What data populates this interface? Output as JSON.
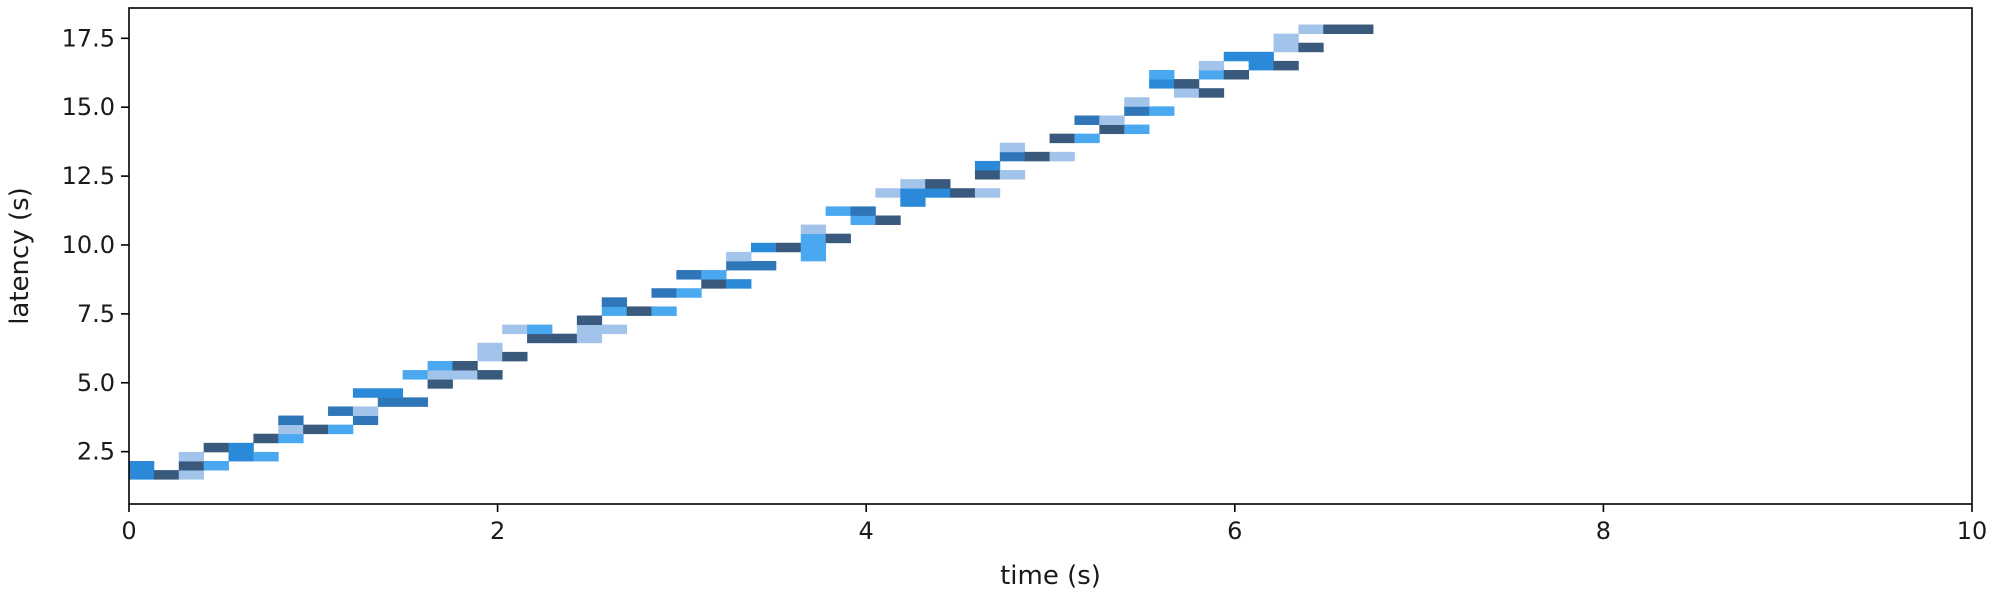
{
  "chart_data": {
    "type": "heatmap",
    "xlabel": "time (s)",
    "ylabel": "latency (s)",
    "xlim": [
      0,
      10
    ],
    "ylim": [
      0.6,
      18.6
    ],
    "x_ticks": [
      0,
      2,
      4,
      6,
      8,
      10
    ],
    "y_ticks": [
      2.5,
      5.0,
      7.5,
      10.0,
      12.5,
      15.0,
      17.5
    ],
    "x_tick_labels": [
      "0",
      "2",
      "4",
      "6",
      "8",
      "10"
    ],
    "y_tick_labels": [
      "2.5",
      "5.0",
      "7.5",
      "10.0",
      "12.5",
      "15.0",
      "17.5"
    ],
    "grid": false,
    "bin_width": 0.135,
    "bin_height": 0.33,
    "palette": [
      "#a3c4ea",
      "#4aa8f0",
      "#2a8ad9",
      "#2e76b8",
      "#3a5a7d"
    ],
    "cells": [
      [
        0.0,
        1.5,
        2
      ],
      [
        0.0,
        1.83,
        2
      ],
      [
        0.135,
        1.5,
        4
      ],
      [
        0.27,
        1.5,
        0
      ],
      [
        0.27,
        1.83,
        4
      ],
      [
        0.27,
        2.16,
        0
      ],
      [
        0.405,
        1.83,
        1
      ],
      [
        0.405,
        2.49,
        4
      ],
      [
        0.54,
        2.16,
        2
      ],
      [
        0.54,
        2.49,
        2
      ],
      [
        0.675,
        2.16,
        1
      ],
      [
        0.675,
        2.82,
        4
      ],
      [
        0.81,
        2.82,
        1
      ],
      [
        0.81,
        3.15,
        0
      ],
      [
        0.81,
        3.48,
        3
      ],
      [
        0.945,
        3.15,
        4
      ],
      [
        1.08,
        3.15,
        1
      ],
      [
        1.08,
        3.81,
        3
      ],
      [
        1.215,
        3.48,
        3
      ],
      [
        1.215,
        3.81,
        0
      ],
      [
        1.215,
        4.47,
        2
      ],
      [
        1.35,
        4.14,
        3
      ],
      [
        1.35,
        4.47,
        2
      ],
      [
        1.485,
        4.14,
        3
      ],
      [
        1.485,
        5.13,
        1
      ],
      [
        1.62,
        4.8,
        4
      ],
      [
        1.62,
        5.13,
        0
      ],
      [
        1.62,
        5.46,
        1
      ],
      [
        1.755,
        5.13,
        0
      ],
      [
        1.755,
        5.46,
        4
      ],
      [
        1.89,
        5.13,
        4
      ],
      [
        1.89,
        5.79,
        0
      ],
      [
        1.89,
        6.12,
        0
      ],
      [
        2.025,
        5.79,
        4
      ],
      [
        2.025,
        6.78,
        0
      ],
      [
        2.16,
        6.45,
        4
      ],
      [
        2.16,
        6.78,
        1
      ],
      [
        2.295,
        6.45,
        4
      ],
      [
        2.43,
        6.45,
        0
      ],
      [
        2.43,
        6.78,
        0
      ],
      [
        2.43,
        7.11,
        4
      ],
      [
        2.565,
        6.78,
        0
      ],
      [
        2.565,
        7.44,
        1
      ],
      [
        2.565,
        7.77,
        3
      ],
      [
        2.7,
        7.44,
        4
      ],
      [
        2.835,
        7.44,
        1
      ],
      [
        2.835,
        8.1,
        3
      ],
      [
        2.97,
        8.1,
        1
      ],
      [
        2.97,
        8.76,
        3
      ],
      [
        3.105,
        8.43,
        4
      ],
      [
        3.105,
        8.76,
        1
      ],
      [
        3.24,
        8.43,
        2
      ],
      [
        3.24,
        9.09,
        3
      ],
      [
        3.24,
        9.42,
        0
      ],
      [
        3.375,
        9.09,
        3
      ],
      [
        3.375,
        9.75,
        2
      ],
      [
        3.51,
        9.75,
        4
      ],
      [
        3.645,
        9.42,
        1
      ],
      [
        3.645,
        9.75,
        1
      ],
      [
        3.645,
        10.08,
        1
      ],
      [
        3.645,
        10.41,
        0
      ],
      [
        3.78,
        10.08,
        4
      ],
      [
        3.78,
        11.07,
        1
      ],
      [
        3.915,
        10.74,
        1
      ],
      [
        3.915,
        11.07,
        3
      ],
      [
        4.05,
        10.74,
        4
      ],
      [
        4.05,
        11.73,
        0
      ],
      [
        4.185,
        11.4,
        2
      ],
      [
        4.185,
        11.73,
        2
      ],
      [
        4.185,
        12.06,
        0
      ],
      [
        4.32,
        11.73,
        2
      ],
      [
        4.32,
        12.06,
        4
      ],
      [
        4.455,
        11.73,
        4
      ],
      [
        4.59,
        11.73,
        0
      ],
      [
        4.59,
        12.39,
        4
      ],
      [
        4.59,
        12.72,
        2
      ],
      [
        4.725,
        12.39,
        0
      ],
      [
        4.725,
        13.05,
        3
      ],
      [
        4.725,
        13.38,
        0
      ],
      [
        4.86,
        13.05,
        4
      ],
      [
        4.995,
        13.05,
        0
      ],
      [
        4.995,
        13.71,
        4
      ],
      [
        5.13,
        13.71,
        1
      ],
      [
        5.13,
        14.37,
        3
      ],
      [
        5.265,
        14.04,
        4
      ],
      [
        5.265,
        14.37,
        0
      ],
      [
        5.4,
        14.04,
        1
      ],
      [
        5.4,
        14.7,
        3
      ],
      [
        5.4,
        15.03,
        0
      ],
      [
        5.535,
        14.7,
        1
      ],
      [
        5.535,
        15.69,
        2
      ],
      [
        5.535,
        16.02,
        1
      ],
      [
        5.67,
        15.36,
        0
      ],
      [
        5.67,
        15.69,
        4
      ],
      [
        5.805,
        15.36,
        4
      ],
      [
        5.805,
        16.02,
        1
      ],
      [
        5.805,
        16.35,
        0
      ],
      [
        5.94,
        16.02,
        4
      ],
      [
        5.94,
        16.68,
        2
      ],
      [
        6.075,
        16.35,
        2
      ],
      [
        6.075,
        16.68,
        2
      ],
      [
        6.21,
        16.35,
        4
      ],
      [
        6.21,
        17.01,
        0
      ],
      [
        6.21,
        17.34,
        0
      ],
      [
        6.345,
        17.01,
        4
      ],
      [
        6.345,
        17.67,
        0
      ],
      [
        6.48,
        17.67,
        4
      ],
      [
        6.615,
        17.67,
        4
      ]
    ]
  }
}
